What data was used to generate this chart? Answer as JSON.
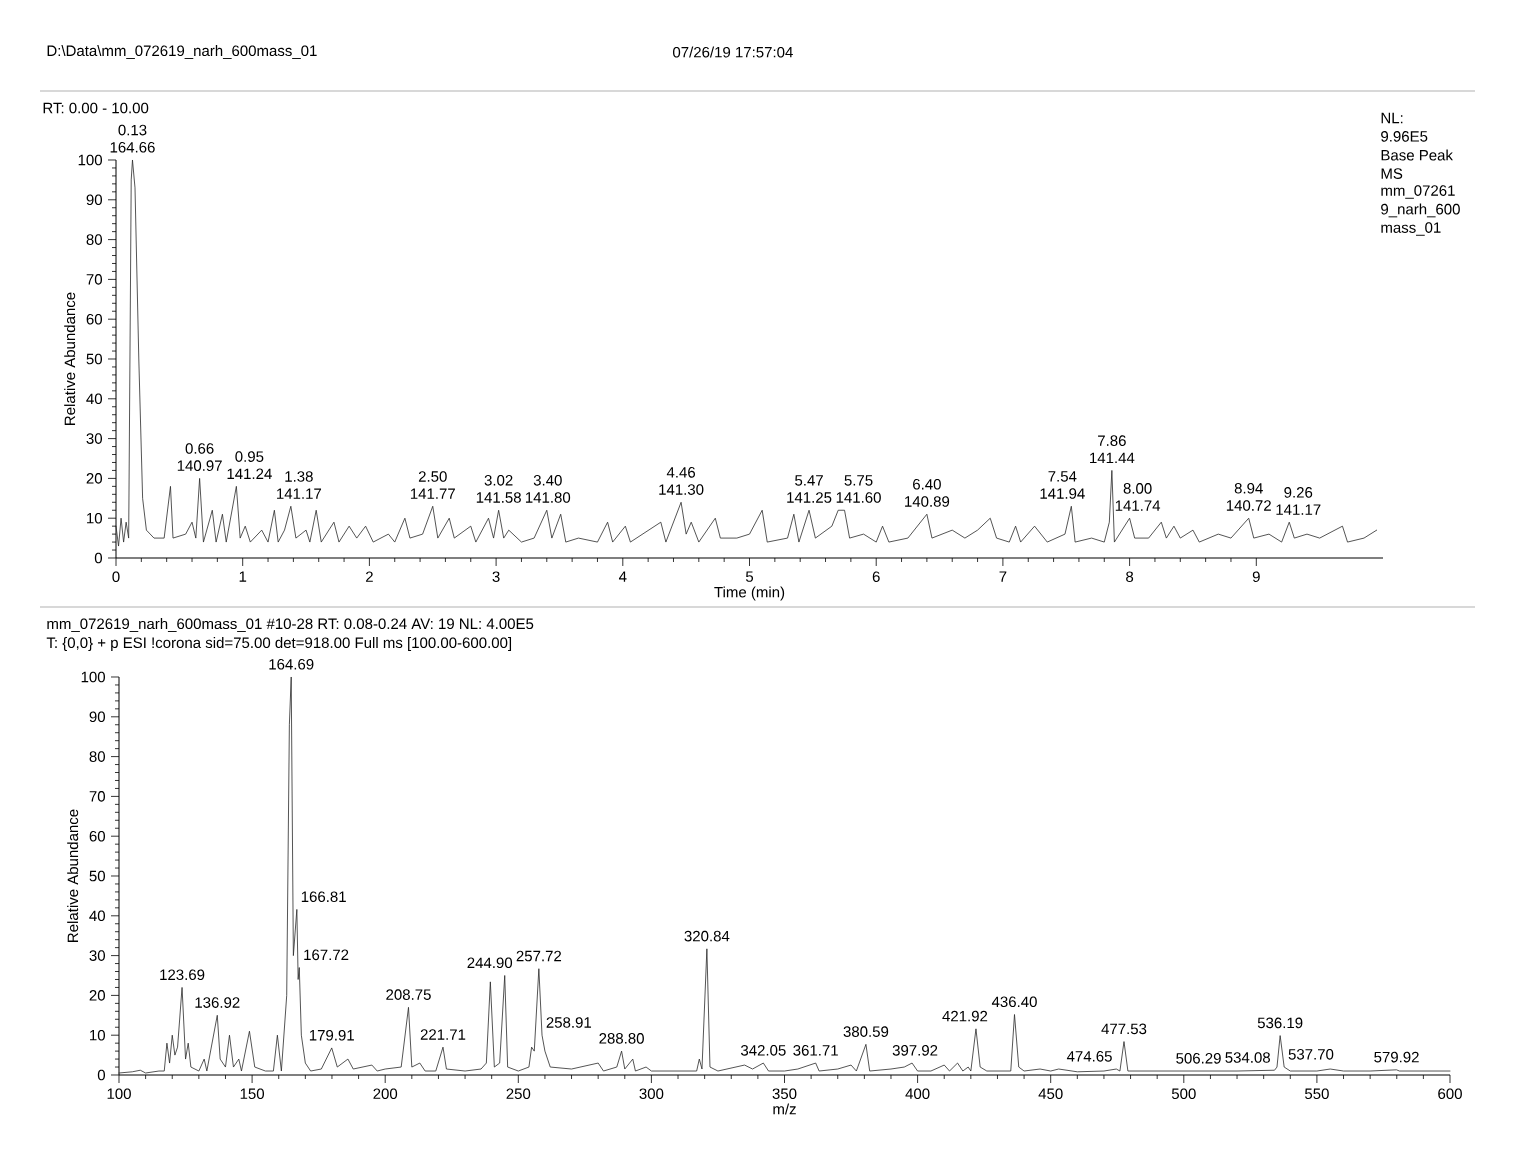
{
  "chart_data": [
    {
      "type": "line",
      "xlabel": "Time (min)",
      "ylabel": "Relative Abundance",
      "xlim": [
        0,
        10
      ],
      "xticks": [
        0,
        1,
        2,
        3,
        4,
        5,
        6,
        7,
        8,
        9
      ],
      "ylim": [
        0,
        100
      ],
      "yticks": [
        0,
        10,
        20,
        30,
        40,
        50,
        60,
        70,
        80,
        90,
        100
      ],
      "series": [
        {
          "color": "#2a2a2a",
          "x": [
            0,
            0.02,
            0.04,
            0.06,
            0.08,
            0.1,
            0.12,
            0.13,
            0.15,
            0.18,
            0.21,
            0.24,
            0.3,
            0.38,
            0.43,
            0.45,
            0.55,
            0.6,
            0.63,
            0.66,
            0.69,
            0.76,
            0.79,
            0.84,
            0.87,
            0.95,
            0.98,
            1.02,
            1.06,
            1.15,
            1.2,
            1.25,
            1.28,
            1.33,
            1.38,
            1.42,
            1.5,
            1.53,
            1.58,
            1.62,
            1.72,
            1.76,
            1.84,
            1.9,
            1.97,
            2.03,
            2.15,
            2.2,
            2.28,
            2.32,
            2.42,
            2.5,
            2.54,
            2.63,
            2.67,
            2.8,
            2.84,
            2.94,
            2.98,
            3.02,
            3.06,
            3.1,
            3.2,
            3.3,
            3.4,
            3.44,
            3.51,
            3.55,
            3.65,
            3.8,
            3.88,
            3.92,
            4.02,
            4.06,
            4.3,
            4.34,
            4.46,
            4.5,
            4.54,
            4.6,
            4.73,
            4.77,
            4.9,
            5.0,
            5.1,
            5.14,
            5.3,
            5.35,
            5.39,
            5.47,
            5.52,
            5.65,
            5.7,
            5.75,
            5.79,
            5.9,
            6.0,
            6.05,
            6.1,
            6.25,
            6.4,
            6.44,
            6.6,
            6.7,
            6.8,
            6.9,
            6.95,
            7.05,
            7.1,
            7.14,
            7.25,
            7.35,
            7.49,
            7.54,
            7.57,
            7.7,
            7.8,
            7.84,
            7.86,
            7.88,
            8.0,
            8.04,
            8.15,
            8.25,
            8.29,
            8.35,
            8.4,
            8.5,
            8.55,
            8.7,
            8.8,
            8.94,
            8.98,
            9.1,
            9.2,
            9.26,
            9.3,
            9.4,
            9.5,
            9.68,
            9.72,
            9.85,
            9.95
          ],
          "values": [
            8,
            3,
            10,
            4,
            9,
            5,
            95,
            100,
            93,
            50,
            15,
            7,
            5,
            5,
            18,
            5,
            6,
            9,
            5,
            20,
            4,
            12,
            4,
            11,
            4,
            18,
            5,
            8,
            4,
            7,
            4,
            12,
            4,
            7,
            13,
            5,
            7,
            4,
            12,
            4,
            9,
            4,
            8,
            5,
            8,
            4,
            6,
            4,
            10,
            5,
            6,
            13,
            5,
            10,
            5,
            8,
            4,
            10,
            5,
            12,
            5,
            7,
            4,
            5,
            12,
            5,
            11,
            4,
            5,
            4,
            9,
            4,
            8,
            4,
            9,
            4,
            14,
            6,
            9,
            4,
            10,
            5,
            5,
            6,
            12,
            4,
            5,
            11,
            4,
            12,
            5,
            8,
            12,
            12,
            5,
            6,
            4,
            8,
            4,
            5,
            11,
            5,
            7,
            5,
            7,
            10,
            5,
            4,
            8,
            4,
            8,
            4,
            6,
            13,
            4,
            5,
            4,
            9,
            22,
            4,
            10,
            5,
            5,
            9,
            5,
            8,
            5,
            7,
            4,
            6,
            5,
            10,
            5,
            6,
            4,
            9,
            5,
            6,
            5,
            8,
            4,
            5,
            7
          ]
        }
      ],
      "annotations": [
        "D:\\Data\\mm_072619_narh_600mass_01",
        "07/26/19 17:57:04",
        "RT: 0.00 - 10.00",
        "NL:",
        "9.96E5",
        "Base Peak",
        "MS",
        "mm_07261",
        "9_narh_600",
        "mass_01",
        {
          "text": "0.13 164.66",
          "x": 0.13,
          "y": 100
        },
        {
          "text": "0.66 140.97",
          "x": 0.66,
          "y": 20
        },
        {
          "text": "0.95 141.24",
          "x": 0.95,
          "y": 18
        },
        {
          "text": "1.38 141.17",
          "x": 1.38,
          "y": 13
        },
        {
          "text": "2.50 141.77",
          "x": 2.5,
          "y": 13
        },
        {
          "text": "3.02 141.58",
          "x": 3.02,
          "y": 12
        },
        {
          "text": "3.40 141.80",
          "x": 3.4,
          "y": 12
        },
        {
          "text": "4.46 141.30",
          "x": 4.46,
          "y": 14
        },
        {
          "text": "5.47 141.25",
          "x": 5.47,
          "y": 12
        },
        {
          "text": "5.75 141.60",
          "x": 5.75,
          "y": 12
        },
        {
          "text": "6.40 140.89",
          "x": 6.4,
          "y": 11
        },
        {
          "text": "7.54 141.94",
          "x": 7.54,
          "y": 13
        },
        {
          "text": "7.86 141.44",
          "x": 7.86,
          "y": 22
        },
        {
          "text": "8.00 141.74",
          "x": 8.0,
          "y": 10
        },
        {
          "text": "8.94 140.72",
          "x": 8.94,
          "y": 10
        },
        {
          "text": "9.26 141.17",
          "x": 9.26,
          "y": 9
        }
      ]
    },
    {
      "type": "line",
      "xlabel": "m/z",
      "ylabel": "Relative Abundance",
      "xlim": [
        100,
        600
      ],
      "xticks": [
        100,
        150,
        200,
        250,
        300,
        350,
        400,
        450,
        500,
        550,
        600
      ],
      "ylim": [
        0,
        100
      ],
      "yticks": [
        0,
        10,
        20,
        30,
        40,
        50,
        60,
        70,
        80,
        90,
        100
      ],
      "series": [
        {
          "color": "#2a2a2a",
          "x": [
            100,
            105,
            108,
            110,
            115,
            117,
            118,
            119,
            120,
            121,
            122,
            123.69,
            125,
            126,
            127,
            130,
            132,
            133,
            136.92,
            138,
            140,
            141.5,
            143,
            145,
            146,
            149,
            151,
            155,
            158,
            159.5,
            161,
            163,
            164,
            164.69,
            165.5,
            166.81,
            167.3,
            167.72,
            168.5,
            170,
            172,
            176,
            179.91,
            182,
            186,
            188,
            195,
            197,
            200,
            206,
            208.75,
            210,
            213,
            215,
            219,
            221.71,
            223,
            230,
            236,
            238,
            239.5,
            241,
            243,
            244.9,
            246,
            250,
            254,
            255,
            256,
            257.72,
            258.91,
            260,
            262,
            270,
            280,
            282,
            287,
            288.8,
            290,
            293,
            294,
            298,
            300,
            310,
            317,
            318,
            319,
            320.84,
            322,
            325,
            335,
            338,
            342.05,
            344,
            350,
            355,
            361.71,
            363,
            370,
            375,
            377,
            380.59,
            382,
            390,
            395,
            397.92,
            400,
            405,
            410,
            412,
            415,
            417,
            419,
            420,
            421.92,
            423.5,
            426,
            435,
            436.4,
            438,
            440,
            446,
            450,
            453,
            460,
            470,
            474.65,
            476,
            477.53,
            479,
            490,
            506.29,
            520,
            534.08,
            535,
            536.19,
            537.7,
            540,
            550,
            555,
            560,
            570,
            579.92,
            581,
            590,
            600
          ],
          "values": [
            0.5,
            0.8,
            1.2,
            0.5,
            1,
            1,
            8,
            3,
            10,
            5,
            7,
            22,
            4,
            8,
            2,
            1,
            4,
            1,
            15,
            4,
            2,
            10,
            2,
            4,
            1,
            11,
            2,
            1,
            1,
            10,
            1,
            20,
            88,
            100,
            30,
            41.6,
            24,
            27,
            10,
            3,
            1,
            1.5,
            6.8,
            2,
            4,
            1.5,
            2.5,
            1,
            1.5,
            2,
            17,
            2,
            3,
            1,
            1,
            7,
            1.5,
            1,
            1.5,
            3,
            23.4,
            2,
            3,
            25,
            2,
            1,
            2,
            7,
            6,
            26.7,
            10,
            6,
            2,
            1.5,
            3,
            1,
            2,
            6,
            1.5,
            4,
            1,
            2,
            1,
            1,
            1,
            4,
            1.5,
            31.7,
            2,
            1,
            2.5,
            1.5,
            3,
            1,
            1,
            1.5,
            3,
            1,
            1.5,
            2.5,
            1,
            7.7,
            1,
            1.5,
            2,
            3,
            1,
            1,
            2.5,
            1,
            3,
            1,
            2,
            1,
            11.6,
            2,
            1,
            1,
            15.2,
            2,
            1,
            1.5,
            1,
            1.5,
            0.8,
            1,
            1.5,
            1,
            8.4,
            1,
            1,
            1,
            1,
            1.2,
            2,
            9.9,
            2,
            1,
            1,
            1.5,
            1,
            1,
            1.3,
            1,
            1,
            1
          ]
        }
      ],
      "annotations": [
        "mm_072619_narh_600mass_01 #10-28   RT: 0.08-0.24   AV: 19   NL: 4.00E5",
        "T: {0,0}  + p ESI !corona sid=75.00  det=918.00 Full ms [100.00-600.00]",
        {
          "text": "123.69",
          "x": 123.69,
          "y": 22
        },
        {
          "text": "136.92",
          "x": 136.92,
          "y": 15
        },
        {
          "text": "164.69",
          "x": 164.69,
          "y": 100
        },
        {
          "text": "166.81",
          "x": 166.81,
          "y": 41.6
        },
        {
          "text": "167.72",
          "x": 167.72,
          "y": 27
        },
        {
          "text": "179.91",
          "x": 179.91,
          "y": 6.8
        },
        {
          "text": "208.75",
          "x": 208.75,
          "y": 17
        },
        {
          "text": "221.71",
          "x": 221.71,
          "y": 7
        },
        {
          "text": "244.90",
          "x": 244.9,
          "y": 25
        },
        {
          "text": "257.72",
          "x": 257.72,
          "y": 26.7
        },
        {
          "text": "258.91",
          "x": 258.91,
          "y": 10
        },
        {
          "text": "288.80",
          "x": 288.8,
          "y": 6
        },
        {
          "text": "320.84",
          "x": 320.84,
          "y": 31.7
        },
        {
          "text": "342.05",
          "x": 342.05,
          "y": 3
        },
        {
          "text": "361.71",
          "x": 361.71,
          "y": 3
        },
        {
          "text": "380.59",
          "x": 380.59,
          "y": 7.7
        },
        {
          "text": "397.92",
          "x": 397.92,
          "y": 3
        },
        {
          "text": "421.92",
          "x": 421.92,
          "y": 11.6
        },
        {
          "text": "436.40",
          "x": 436.4,
          "y": 15.2
        },
        {
          "text": "474.65",
          "x": 474.65,
          "y": 1.5
        },
        {
          "text": "477.53",
          "x": 477.53,
          "y": 8.4
        },
        {
          "text": "506.29",
          "x": 506.29,
          "y": 1
        },
        {
          "text": "534.08",
          "x": 534.08,
          "y": 1.2
        },
        {
          "text": "536.19",
          "x": 536.19,
          "y": 9.9
        },
        {
          "text": "537.70",
          "x": 537.7,
          "y": 2
        },
        {
          "text": "579.92",
          "x": 579.92,
          "y": 1.3
        }
      ]
    }
  ]
}
